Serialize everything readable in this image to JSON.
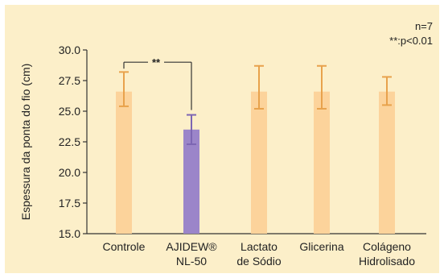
{
  "chart_data": {
    "type": "bar",
    "ylabel": "Espessura da ponta do fio (cm)",
    "ylim": [
      15.0,
      30.0
    ],
    "yticks": [
      "15.0",
      "17.5",
      "20.0",
      "22.5",
      "25.0",
      "27.5",
      "30.0"
    ],
    "ytick_values": [
      15.0,
      17.5,
      20.0,
      22.5,
      25.0,
      27.5,
      30.0
    ],
    "categories": [
      [
        "Controle"
      ],
      [
        "AJIDEW®",
        "NL-50"
      ],
      [
        "Lactato",
        "de Sódio"
      ],
      [
        "Glicerina"
      ],
      [
        "Colágeno",
        "Hidrolisado"
      ]
    ],
    "values": [
      26.6,
      23.5,
      26.6,
      26.6,
      26.6
    ],
    "error_low": [
      25.4,
      22.3,
      25.2,
      25.2,
      25.5
    ],
    "error_high": [
      28.2,
      24.7,
      28.7,
      28.7,
      27.8
    ],
    "colors": {
      "bar_default": "#fcd39b",
      "bar_highlight": "#9b85c9",
      "error_default": "#e8a24c",
      "error_highlight": "#7d66b3",
      "panel_bg": "#fcefc9"
    },
    "highlight_index": 1,
    "significance": {
      "from": 0,
      "to": 1,
      "label": "**"
    },
    "annotations": [
      "n=7",
      "**:p<0.01"
    ],
    "grid": false
  }
}
